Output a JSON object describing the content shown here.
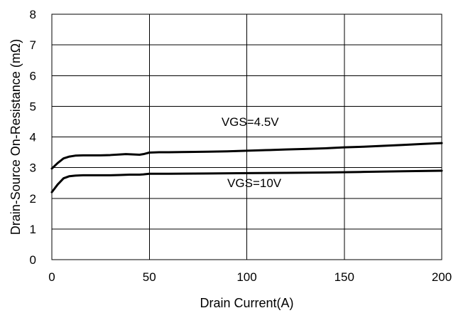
{
  "chart_data": {
    "type": "line",
    "xlabel": "Drain Current(A)",
    "ylabel": "Drain-Source On-Resistance (mΩ)",
    "xlim": [
      0,
      200
    ],
    "ylim": [
      0,
      8
    ],
    "x_ticks": [
      0,
      50,
      100,
      150,
      200
    ],
    "y_ticks": [
      0,
      1,
      2,
      3,
      4,
      5,
      6,
      7,
      8
    ],
    "grid": true,
    "line_color": "#000000",
    "series": [
      {
        "name": "VGS=4.5V",
        "x": [
          0,
          3,
          6,
          9,
          12,
          16,
          20,
          25,
          30,
          35,
          38,
          42,
          45,
          47,
          50,
          55,
          60,
          70,
          80,
          90,
          100,
          110,
          120,
          130,
          140,
          150,
          160,
          170,
          180,
          190,
          200
        ],
        "y": [
          2.97,
          3.15,
          3.3,
          3.36,
          3.39,
          3.4,
          3.4,
          3.4,
          3.41,
          3.43,
          3.44,
          3.43,
          3.42,
          3.44,
          3.49,
          3.5,
          3.5,
          3.51,
          3.52,
          3.53,
          3.55,
          3.57,
          3.59,
          3.61,
          3.63,
          3.66,
          3.68,
          3.71,
          3.74,
          3.77,
          3.8
        ]
      },
      {
        "name": "VGS=10V",
        "x": [
          0,
          3,
          6,
          9,
          12,
          16,
          20,
          25,
          30,
          35,
          40,
          45,
          47,
          50,
          60,
          80,
          100,
          120,
          140,
          160,
          180,
          200
        ],
        "y": [
          2.2,
          2.45,
          2.65,
          2.72,
          2.74,
          2.75,
          2.75,
          2.75,
          2.75,
          2.76,
          2.77,
          2.77,
          2.78,
          2.8,
          2.8,
          2.81,
          2.82,
          2.83,
          2.84,
          2.86,
          2.88,
          2.9
        ]
      }
    ]
  }
}
